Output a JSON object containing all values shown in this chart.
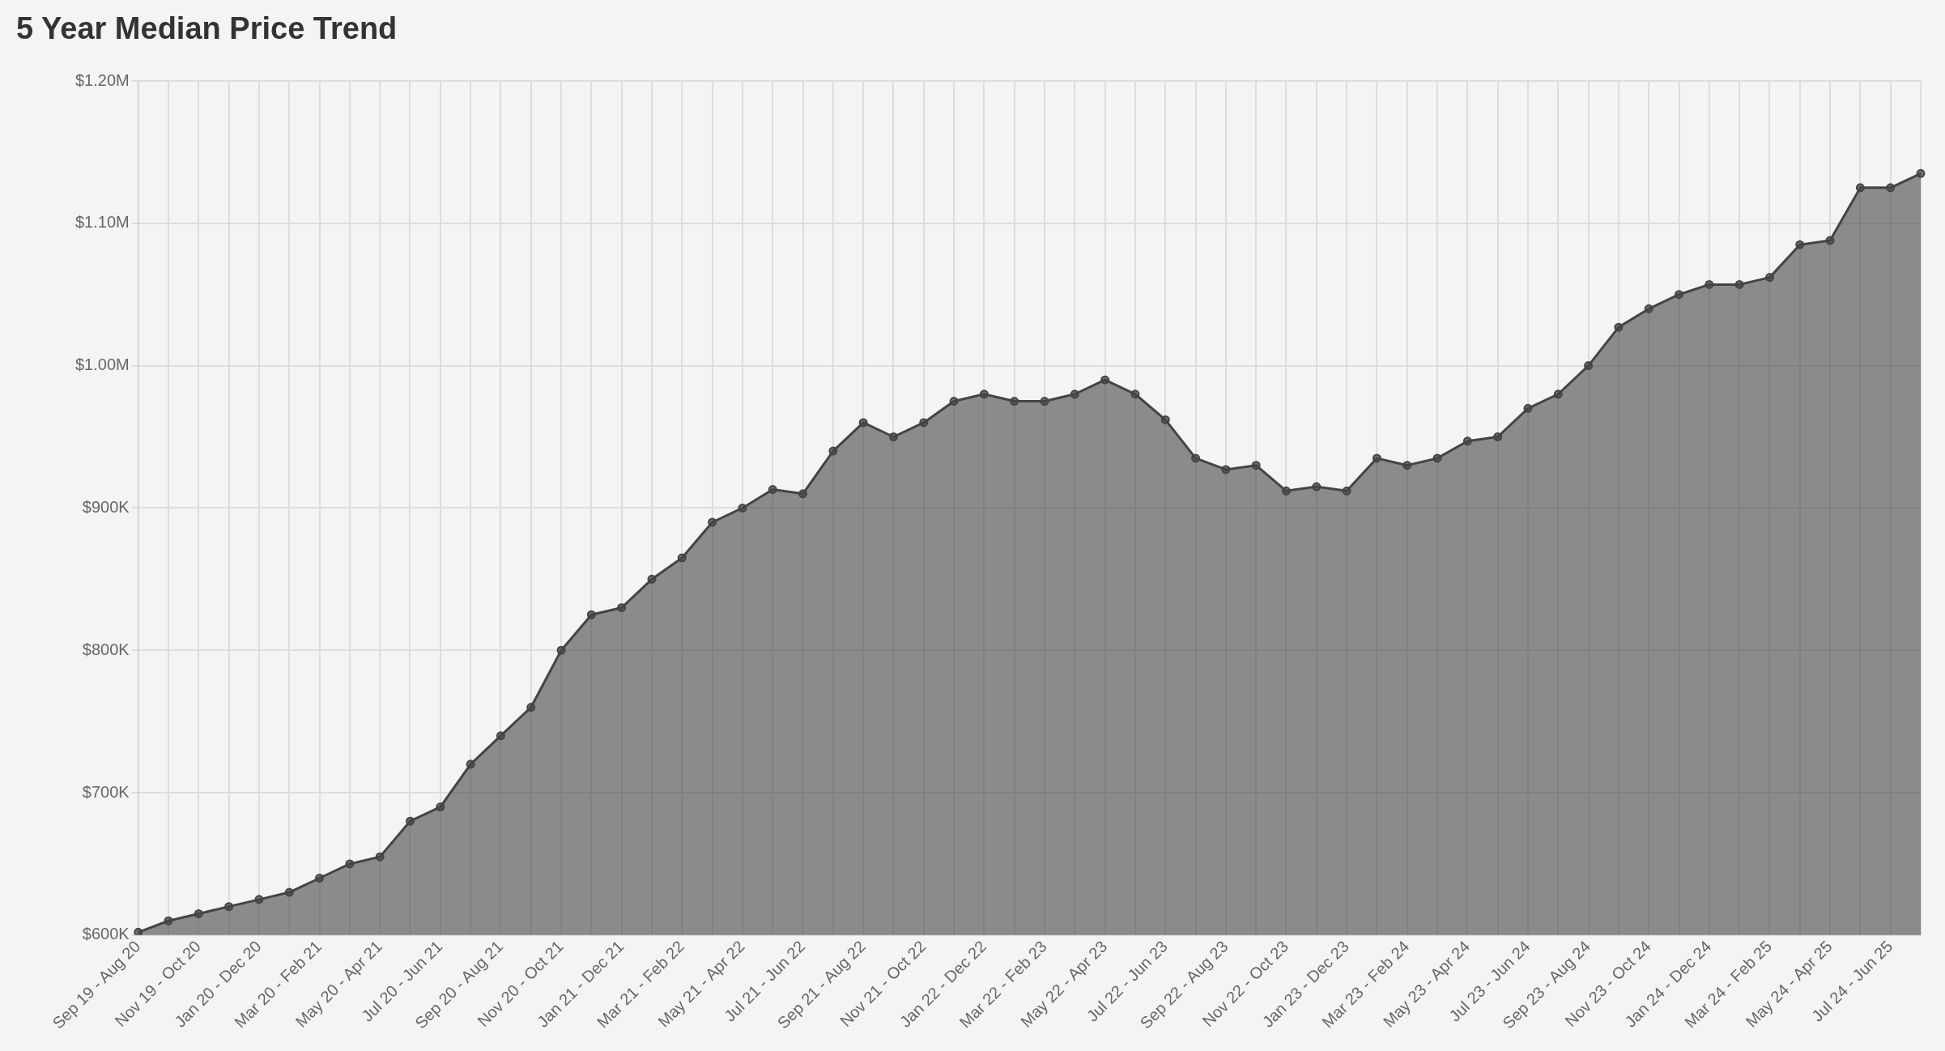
{
  "chart_data": {
    "type": "area",
    "title": "5 Year Median Price Trend",
    "categories": [
      "Sep 19 - Aug 20",
      null,
      "Nov 19 - Oct 20",
      null,
      "Jan 20 - Dec 20",
      null,
      "Mar 20 - Feb 21",
      null,
      "May 20 - Apr 21",
      null,
      "Jul 20 - Jun 21",
      null,
      "Sep 20 - Aug 21",
      null,
      "Nov 20 - Oct 21",
      null,
      "Jan 21 - Dec 21",
      null,
      "Mar 21 - Feb 22",
      null,
      "May 21 - Apr 22",
      null,
      "Jul 21 - Jun 22",
      null,
      "Sep 21 - Aug 22",
      null,
      "Nov 21 - Oct 22",
      null,
      "Jan 22 - Dec 22",
      null,
      "Mar 22 - Feb 23",
      null,
      "May 22 - Apr 23",
      null,
      "Jul 22 - Jun 23",
      null,
      "Sep 22 - Aug 23",
      null,
      "Nov 22 - Oct 23",
      null,
      "Jan 23 - Dec 23",
      null,
      "Mar 23 - Feb 24",
      null,
      "May 23 - Apr 24",
      null,
      "Jul 23 - Jun 24",
      null,
      "Sep 23 - Aug 24",
      null,
      "Nov 23 - Oct 24",
      null,
      "Jan 24 - Dec 24",
      null,
      "Mar 24 - Feb 25",
      null,
      "May 24 - Apr 25",
      null,
      "Jul 24 - Jun 25",
      null
    ],
    "series": [
      {
        "color": "#444444",
        "values": [
          602000,
          610000,
          615000,
          620000,
          625000,
          630000,
          640000,
          650000,
          655000,
          680000,
          690000,
          720000,
          740000,
          760000,
          800000,
          825000,
          830000,
          850000,
          865000,
          890000,
          900000,
          913000,
          910000,
          940000,
          960000,
          950000,
          960000,
          975000,
          980000,
          975000,
          975000,
          980000,
          990000,
          980000,
          962000,
          935000,
          927000,
          930000,
          912000,
          915000,
          912000,
          935000,
          930000,
          935000,
          947000,
          950000,
          970000,
          980000,
          1000000,
          1027000,
          1040000,
          1050000,
          1057000,
          1057000,
          1062000,
          1085000,
          1088000,
          1125000,
          1125000,
          1135000
        ]
      }
    ],
    "ylim": [
      600000,
      1200000
    ],
    "yticks": [
      {
        "value": 600000,
        "label": "$600K"
      },
      {
        "value": 700000,
        "label": "$700K"
      },
      {
        "value": 800000,
        "label": "$800K"
      },
      {
        "value": 900000,
        "label": "$900K"
      },
      {
        "value": 1000000,
        "label": "$1.00M"
      },
      {
        "value": 1100000,
        "label": "$1.10M"
      },
      {
        "value": 1200000,
        "label": "$1.20M"
      }
    ],
    "grid": true,
    "legend": false,
    "marker": "circle",
    "line_style": "solid"
  }
}
